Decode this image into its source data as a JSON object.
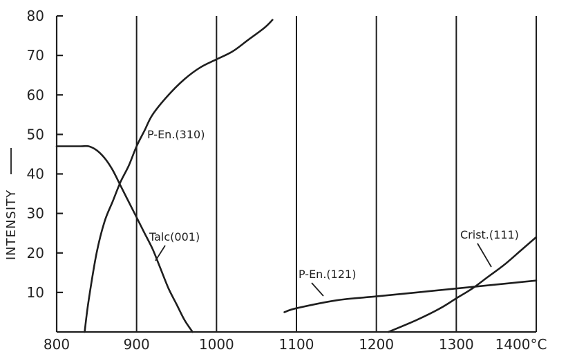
{
  "chart_data": {
    "type": "line",
    "title": "",
    "xlabel": "",
    "ylabel": "INTENSITY",
    "xlim": [
      800,
      1400
    ],
    "ylim": [
      0,
      80
    ],
    "x_ticks": [
      800,
      900,
      1000,
      1100,
      1200,
      1300,
      1400
    ],
    "x_tick_labels": [
      "800",
      "900",
      "1000",
      "1100",
      "1200",
      "1300",
      "1400°C"
    ],
    "y_ticks": [
      10,
      20,
      30,
      40,
      50,
      60,
      70,
      80
    ],
    "y_tick_labels": [
      "10",
      "20",
      "30",
      "40",
      "50",
      "60",
      "70",
      "80"
    ],
    "vertical_lines": [
      900,
      1000,
      1100,
      1200,
      1300,
      1400
    ],
    "series": [
      {
        "name": "P-En.(310)",
        "x": [
          835,
          840,
          850,
          860,
          870,
          880,
          890,
          900,
          910,
          920,
          940,
          960,
          980,
          1000,
          1020,
          1040,
          1060,
          1070
        ],
        "y": [
          0,
          8,
          20,
          28,
          33,
          38,
          42,
          47,
          51,
          55,
          60,
          64,
          67,
          69,
          71,
          74,
          77,
          79
        ]
      },
      {
        "name": "Talc(001)",
        "x": [
          800,
          830,
          840,
          850,
          860,
          870,
          880,
          890,
          900,
          910,
          920,
          930,
          940,
          950,
          960,
          970
        ],
        "y": [
          47,
          47,
          47,
          46,
          44,
          41,
          37,
          33,
          29,
          25,
          21,
          16,
          11,
          7,
          3,
          0
        ]
      },
      {
        "name": "P-En.(121)",
        "x": [
          1085,
          1100,
          1150,
          1200,
          1250,
          1300,
          1350,
          1400
        ],
        "y": [
          5,
          6,
          8,
          9,
          10,
          11,
          12,
          13
        ]
      },
      {
        "name": "Crist.(111)",
        "x": [
          1215,
          1250,
          1280,
          1300,
          1320,
          1340,
          1360,
          1380,
          1400
        ],
        "y": [
          0,
          3,
          6,
          8.5,
          11,
          14,
          17,
          20.5,
          24
        ]
      }
    ]
  }
}
